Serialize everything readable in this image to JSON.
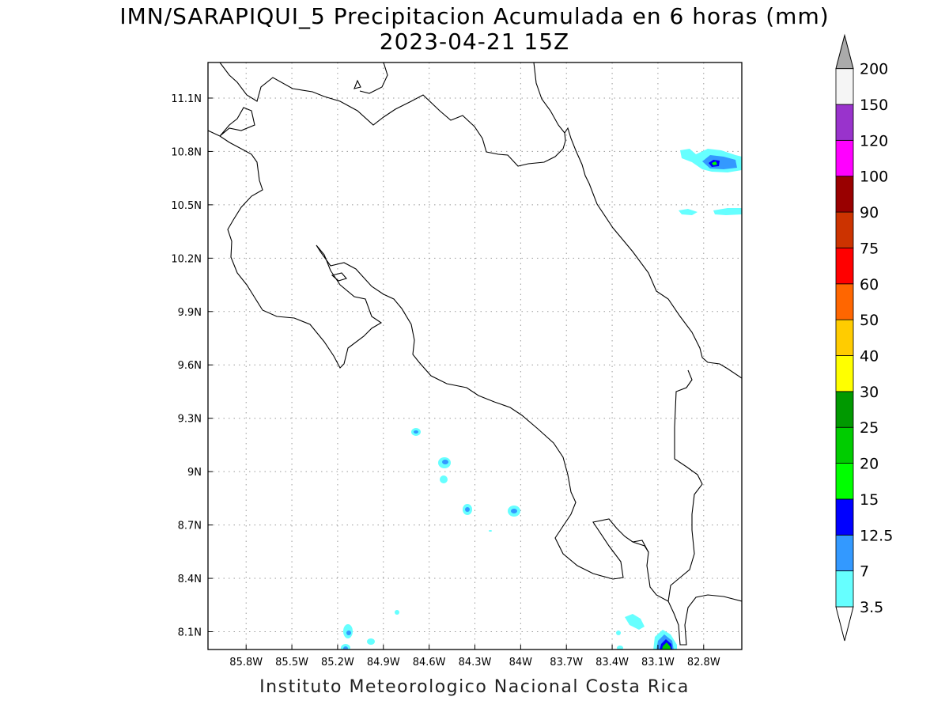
{
  "title": {
    "line1": "IMN/SARAPIQUI_5 Precipitacion Acumulada en 6 horas (mm)",
    "line2": "2023-04-21 15Z"
  },
  "footer": "Instituto Meteorologico Nacional Costa Rica",
  "map": {
    "lon_range": [
      -86.05,
      -82.55
    ],
    "lat_range": [
      8.0,
      11.3
    ],
    "lon_ticks": [
      "85.8W",
      "85.5W",
      "85.2W",
      "84.9W",
      "84.6W",
      "84.3W",
      "84W",
      "83.7W",
      "83.4W",
      "83.1W",
      "82.8W"
    ],
    "lat_ticks": [
      "11.1N",
      "10.8N",
      "10.5N",
      "10.2N",
      "9.9N",
      "9.6N",
      "9.3N",
      "9N",
      "8.7N",
      "8.4N",
      "8.1N"
    ],
    "grid": "dotted"
  },
  "colorbar": {
    "units": "mm",
    "levels": [
      {
        "label": "3.5",
        "color": "#66ffff"
      },
      {
        "label": "7",
        "color": "#3399ff"
      },
      {
        "label": "12.5",
        "color": "#0000ff"
      },
      {
        "label": "15",
        "color": "#00ff00"
      },
      {
        "label": "20",
        "color": "#00cc00"
      },
      {
        "label": "25",
        "color": "#009900"
      },
      {
        "label": "30",
        "color": "#ffff00"
      },
      {
        "label": "40",
        "color": "#ffcc00"
      },
      {
        "label": "50",
        "color": "#ff6600"
      },
      {
        "label": "60",
        "color": "#ff0000"
      },
      {
        "label": "75",
        "color": "#cc3300"
      },
      {
        "label": "90",
        "color": "#990000"
      },
      {
        "label": "100",
        "color": "#ff00ff"
      },
      {
        "label": "120",
        "color": "#9933cc"
      },
      {
        "label": "150",
        "color": "#f5f5f5"
      },
      {
        "label": "200",
        "color": "#aaaaaa"
      }
    ]
  }
}
